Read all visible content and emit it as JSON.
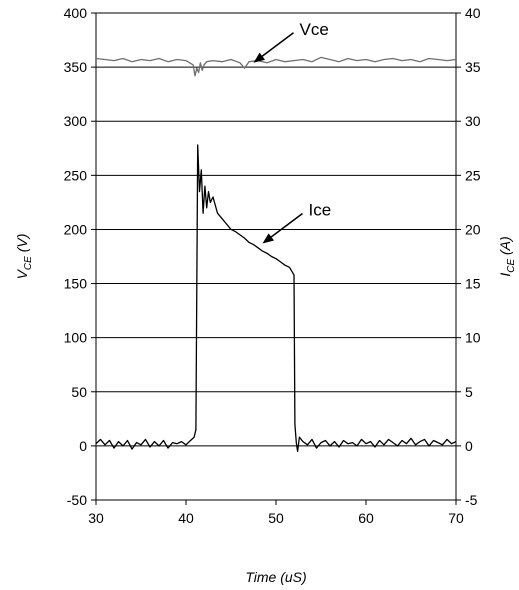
{
  "chart_data": {
    "type": "line",
    "title": "",
    "xlabel": "Time (uS)",
    "ylabel": {
      "main": "V",
      "sub": "CE",
      "unit": " (V)"
    },
    "y2label": {
      "main": "I",
      "sub": "CE",
      "unit": " (A)"
    },
    "xlim": [
      30,
      70
    ],
    "ylim": [
      -50,
      400
    ],
    "y2lim": [
      -5,
      40
    ],
    "x_ticks": [
      30,
      40,
      50,
      60,
      70
    ],
    "y_ticks": [
      -50,
      0,
      50,
      100,
      150,
      200,
      250,
      300,
      350,
      400
    ],
    "y2_ticks": [
      -5,
      0,
      5,
      10,
      15,
      20,
      25,
      30,
      35,
      40
    ],
    "grid": "horizontal major lines",
    "legend": "none",
    "annotations": [
      {
        "text": "Vce",
        "target": [
          47.5,
          354
        ],
        "series": "Vce"
      },
      {
        "text": "Ice",
        "target": [
          48.5,
          187
        ],
        "series": "Ice"
      }
    ],
    "series": [
      {
        "name": "Vce",
        "axis": "left",
        "color": "#6e6e6e",
        "x": [
          30,
          31,
          32,
          33,
          34,
          35,
          36,
          37,
          38,
          39,
          40,
          40.8,
          41.0,
          41.2,
          41.4,
          41.6,
          41.8,
          42.0,
          42.3,
          43,
          44,
          45,
          46,
          46.5,
          47,
          48,
          49,
          50,
          51,
          52,
          53,
          54,
          55,
          56,
          57,
          58,
          59,
          60,
          61,
          62,
          63,
          64,
          65,
          66,
          67,
          68,
          69,
          70
        ],
        "y": [
          358,
          357,
          356,
          358,
          355,
          357,
          356,
          358,
          355,
          357,
          356,
          352,
          342,
          349,
          345,
          354,
          347,
          352,
          355,
          356,
          355,
          357,
          354,
          349,
          355,
          356,
          354,
          357,
          355,
          356,
          357,
          355,
          359,
          357,
          355,
          358,
          356,
          357,
          355,
          357,
          358,
          356,
          357,
          355,
          358,
          357,
          356,
          357
        ]
      },
      {
        "name": "Ice",
        "axis": "right",
        "color": "#000000",
        "x": [
          30,
          30.5,
          31,
          31.5,
          32,
          32.5,
          33,
          33.5,
          34,
          34.5,
          35,
          35.5,
          36,
          36.5,
          37,
          37.5,
          38,
          38.5,
          39,
          39.5,
          40,
          40.5,
          40.9,
          41.1,
          41.3,
          41.5,
          41.7,
          41.9,
          42.1,
          42.3,
          42.5,
          42.7,
          43,
          43.5,
          44,
          44.5,
          45,
          45.5,
          46,
          46.5,
          47,
          47.5,
          48,
          48.5,
          49,
          49.5,
          50,
          50.5,
          51,
          51.5,
          52.0,
          52.1,
          52.25,
          52.4,
          52.6,
          53,
          53.5,
          54,
          54.5,
          55,
          55.5,
          56,
          56.5,
          57,
          57.5,
          58,
          58.5,
          59,
          59.5,
          60,
          60.5,
          61,
          61.5,
          62,
          62.5,
          63,
          63.5,
          64,
          64.5,
          65,
          65.5,
          66,
          66.5,
          67,
          67.5,
          68,
          68.5,
          69,
          69.5,
          70
        ],
        "y": [
          0.2,
          0.6,
          0.1,
          0.5,
          -0.2,
          0.4,
          0.0,
          0.5,
          -0.3,
          0.3,
          0.1,
          0.6,
          -0.1,
          0.4,
          0.0,
          0.5,
          -0.2,
          0.3,
          0.2,
          0.4,
          0.1,
          0.5,
          0.8,
          1.5,
          27.8,
          23.5,
          25.5,
          21.5,
          24.0,
          22.0,
          23.5,
          22.5,
          23.0,
          21.5,
          21.0,
          20.5,
          20.0,
          19.8,
          19.5,
          19.2,
          18.8,
          18.6,
          18.3,
          18.0,
          17.8,
          17.5,
          17.3,
          17.0,
          16.7,
          16.5,
          15.8,
          2.0,
          0.3,
          -0.5,
          0.8,
          0.4,
          0.1,
          0.6,
          -0.2,
          0.3,
          0.5,
          0.0,
          0.4,
          -0.1,
          0.5,
          0.2,
          0.3,
          0.0,
          0.6,
          0.2,
          0.4,
          -0.1,
          0.5,
          0.1,
          0.6,
          0.3,
          0.0,
          0.5,
          0.2,
          0.7,
          0.1,
          0.4,
          0.6,
          0.0,
          0.5,
          0.3,
          0.1,
          0.6,
          0.2,
          0.4
        ]
      }
    ]
  }
}
